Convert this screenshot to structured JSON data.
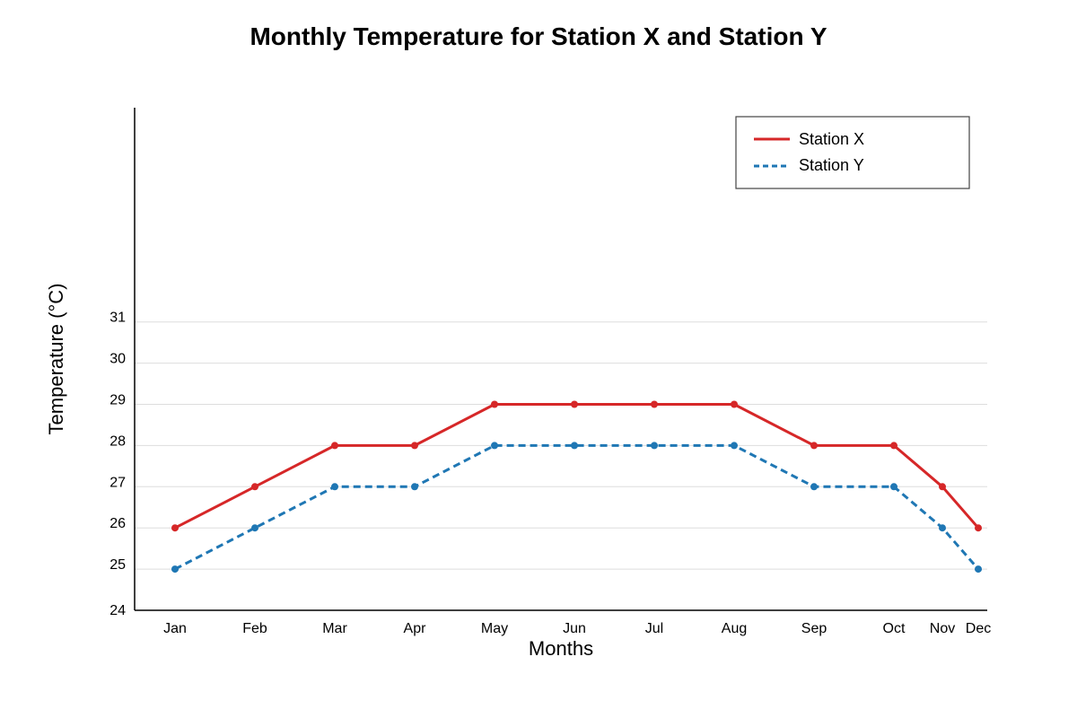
{
  "chart_data": {
    "type": "line",
    "title": "Monthly Temperature for Station X and Station Y",
    "xlabel": "Months",
    "ylabel": "Temperature (°C)",
    "categories": [
      "Jan",
      "Feb",
      "Mar",
      "Apr",
      "May",
      "Jun",
      "Jul",
      "Aug",
      "Sep",
      "Oct",
      "Nov",
      "Dec"
    ],
    "y_ticks": [
      24,
      25,
      26,
      27,
      28,
      29,
      30,
      31
    ],
    "ylim": [
      24,
      36.2
    ],
    "grid": "horizontal",
    "legend_position": "top-right",
    "series": [
      {
        "name": "Station X",
        "color": "#d62728",
        "line_style": "solid",
        "values": [
          26,
          27,
          28,
          28,
          29,
          29,
          29,
          29,
          28,
          28,
          27,
          26
        ]
      },
      {
        "name": "Station Y",
        "color": "#1f77b4",
        "line_style": "dashed",
        "values": [
          25,
          26,
          27,
          27,
          28,
          28,
          28,
          28,
          27,
          27,
          26,
          25
        ]
      }
    ]
  }
}
